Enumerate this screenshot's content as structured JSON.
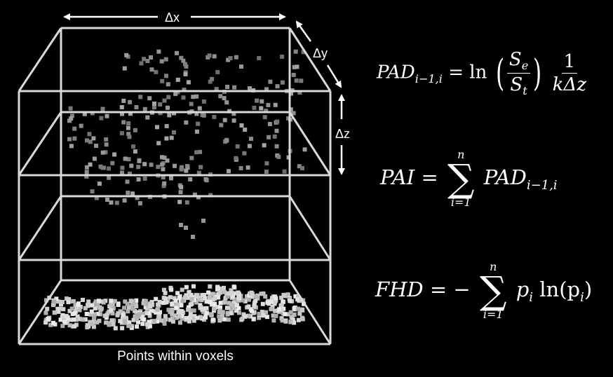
{
  "caption": "Points within voxels",
  "axes": {
    "dx": "Δx",
    "dy": "Δy",
    "dz": "Δz"
  },
  "equations": {
    "pad": {
      "lhs": "PAD",
      "lhs_sub": "i−1,i",
      "equals": "=",
      "fn": "ln",
      "num": "S",
      "num_sub": "e",
      "den": "S",
      "den_sub": "t",
      "frac2_num": "1",
      "frac2_den": "kΔz"
    },
    "pai": {
      "lhs": "PAI",
      "equals": "=",
      "sum_top": "n",
      "sum_bottom": "i=1",
      "term": "PAD",
      "term_sub": "i−1,i"
    },
    "fhd": {
      "lhs": "FHD",
      "equals": "= −",
      "sum_top": "n",
      "sum_bottom": "i=1",
      "term": "p",
      "term_sub": "i",
      "fn": "ln(p",
      "fn_sub": "i",
      "close": ")"
    }
  },
  "colors": {
    "background": "#000000",
    "lines": "#d9d9d9",
    "text": "#ffffff",
    "canopy_points": "#8a8a8a",
    "ground_points": "#c8c8c8"
  }
}
